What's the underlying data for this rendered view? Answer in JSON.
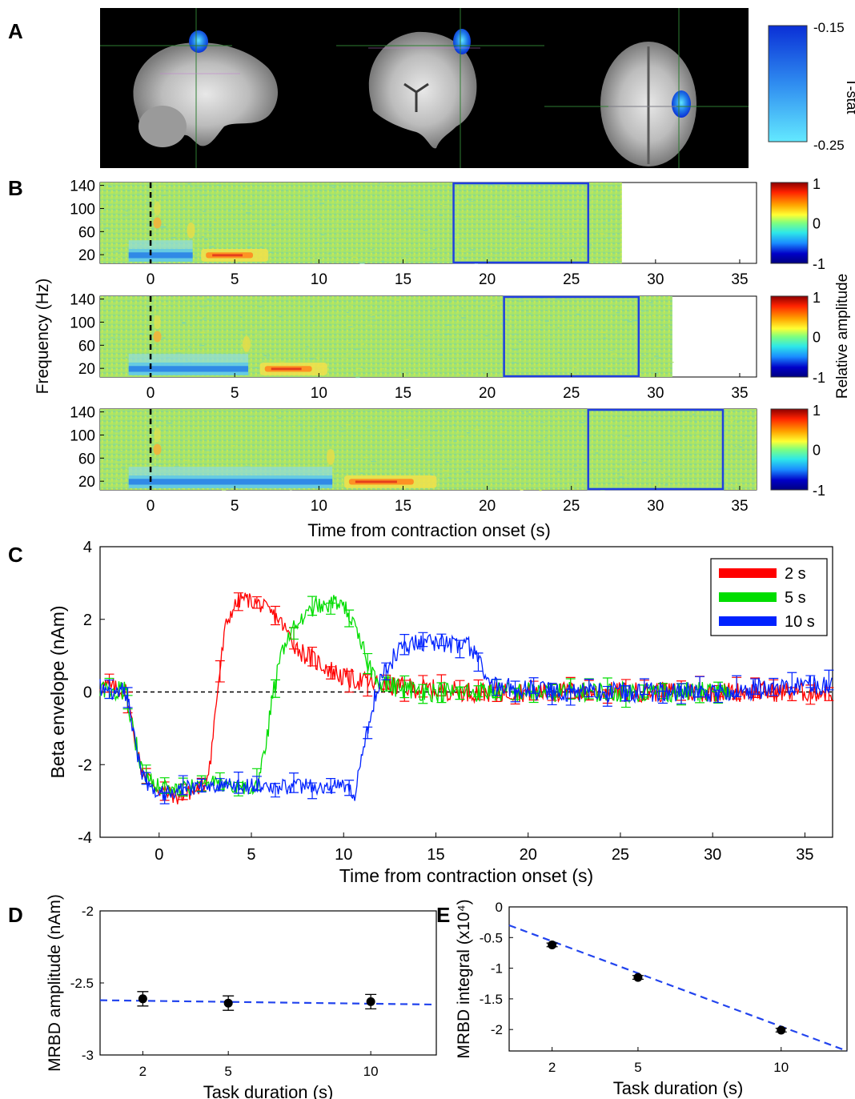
{
  "panels": {
    "a": {
      "letter": "A",
      "colorbar": {
        "top_label": "-0.15",
        "bottom_label": "-0.25",
        "title": "T-stat",
        "colors": [
          "#0a2fd6",
          "#2f8cf0",
          "#63e9ff"
        ]
      }
    },
    "b": {
      "letter": "B",
      "ylabel": "Frequency (Hz)",
      "xlabel": "Time from contraction onset (s)",
      "colorbar": {
        "title": "Relative amplitude",
        "ticks": [
          "1",
          "0",
          "-1"
        ],
        "colors": [
          "#8b0000",
          "#ff2200",
          "#ffa500",
          "#ffff33",
          "#7fff7f",
          "#2ee8e8",
          "#1a8cff",
          "#0000c8",
          "#000080"
        ]
      }
    },
    "c": {
      "letter": "C"
    },
    "d": {
      "letter": "D"
    },
    "e": {
      "letter": "E"
    }
  },
  "chart_data": [
    {
      "type": "heatmap",
      "panel": "B1",
      "condition_duration_s": 2,
      "y_ticks": [
        140,
        100,
        60,
        20
      ],
      "x_ticks": [
        0,
        5,
        10,
        15,
        20,
        25,
        30,
        35
      ],
      "xlim": [
        -3,
        36
      ],
      "ylim": [
        5,
        145
      ],
      "data_extent_s": [
        -3,
        28
      ],
      "onset_line_s": 0,
      "highlight_window_s": [
        18,
        26
      ],
      "features": {
        "desync_end_s": 2.5,
        "rebound_s": [
          3,
          7
        ],
        "rebound_band_hz": [
          10,
          30
        ]
      }
    },
    {
      "type": "heatmap",
      "panel": "B2",
      "condition_duration_s": 5,
      "y_ticks": [
        140,
        100,
        60,
        20
      ],
      "x_ticks": [
        0,
        5,
        10,
        15,
        20,
        25,
        30,
        35
      ],
      "xlim": [
        -3,
        36
      ],
      "ylim": [
        5,
        145
      ],
      "data_extent_s": [
        -3,
        31
      ],
      "onset_line_s": 0,
      "highlight_window_s": [
        21,
        29
      ],
      "features": {
        "desync_end_s": 5.8,
        "rebound_s": [
          6.5,
          10.5
        ],
        "rebound_band_hz": [
          10,
          30
        ]
      }
    },
    {
      "type": "heatmap",
      "panel": "B3",
      "condition_duration_s": 10,
      "y_ticks": [
        140,
        100,
        60,
        20
      ],
      "x_ticks": [
        0,
        5,
        10,
        15,
        20,
        25,
        30,
        35
      ],
      "xlim": [
        -3,
        36
      ],
      "ylim": [
        5,
        145
      ],
      "data_extent_s": [
        -3,
        36
      ],
      "onset_line_s": 0,
      "highlight_window_s": [
        26,
        34
      ],
      "features": {
        "desync_end_s": 10.8,
        "rebound_s": [
          11.5,
          17
        ],
        "rebound_band_hz": [
          10,
          30
        ]
      }
    },
    {
      "type": "line",
      "panel": "C",
      "xlabel": "Time from contraction onset (s)",
      "ylabel": "Beta envelope (nAm)",
      "xlim": [
        -3.2,
        36.5
      ],
      "ylim": [
        -4,
        4
      ],
      "x_ticks": [
        0,
        5,
        10,
        15,
        20,
        25,
        30,
        35
      ],
      "y_ticks": [
        4,
        2,
        0,
        -2,
        -4
      ],
      "reference_line_y": 0,
      "legend_position": "top-right",
      "series": [
        {
          "name": "2 s",
          "color": "#ff0000",
          "x": [
            -3.2,
            -1.8,
            -1.4,
            -1.0,
            -0.5,
            0,
            1,
            2,
            2.5,
            2.8,
            3.2,
            3.6,
            4,
            4.5,
            5,
            5.5,
            6,
            6.5,
            7,
            7.5,
            8,
            9,
            10,
            11,
            12,
            14,
            17,
            20,
            25,
            30,
            34,
            36.5
          ],
          "y": [
            0.2,
            0.0,
            -1.0,
            -2.1,
            -2.4,
            -2.7,
            -2.9,
            -2.7,
            -2.5,
            -1.8,
            0.2,
            1.8,
            2.3,
            2.6,
            2.5,
            2.4,
            2.2,
            2.0,
            1.6,
            1.2,
            1.0,
            0.7,
            0.4,
            0.3,
            0.2,
            0.1,
            0.0,
            0.0,
            0.0,
            0.0,
            0.0,
            0.0
          ]
        },
        {
          "name": "5 s",
          "color": "#00dd00",
          "x": [
            -3.2,
            -1.8,
            -1.4,
            -1.0,
            -0.5,
            0,
            1,
            2,
            3,
            4,
            5,
            5.4,
            5.8,
            6.2,
            6.8,
            7.5,
            8,
            8.5,
            9,
            9.5,
            10,
            10.5,
            11,
            11.5,
            12,
            13,
            15,
            18,
            22,
            26,
            29,
            31
          ],
          "y": [
            0.1,
            0.0,
            -1.0,
            -2.1,
            -2.4,
            -2.6,
            -2.7,
            -2.6,
            -2.5,
            -2.6,
            -2.7,
            -2.5,
            -1.4,
            0.0,
            1.4,
            1.9,
            2.1,
            2.4,
            2.3,
            2.5,
            2.4,
            1.9,
            1.2,
            0.6,
            0.3,
            0.1,
            0.0,
            0.0,
            0.0,
            0.0,
            0.0,
            0.0
          ]
        },
        {
          "name": "10 s",
          "color": "#0022ff",
          "x": [
            -3.2,
            -1.8,
            -1.4,
            -1.0,
            -0.5,
            0,
            1,
            2,
            4,
            6,
            8,
            10,
            10.6,
            11.0,
            11.5,
            12,
            12.5,
            13,
            14,
            15,
            16,
            17,
            17.5,
            18,
            19,
            22,
            26,
            30,
            33,
            36.5
          ],
          "y": [
            0.1,
            0.0,
            -1.0,
            -2.2,
            -2.6,
            -2.8,
            -2.7,
            -2.6,
            -2.6,
            -2.6,
            -2.6,
            -2.6,
            -2.8,
            -1.8,
            -0.5,
            0.4,
            0.8,
            1.2,
            1.4,
            1.4,
            1.3,
            1.2,
            0.6,
            0.2,
            0.1,
            0.0,
            0.0,
            0.0,
            0.1,
            0.2
          ]
        }
      ]
    },
    {
      "type": "scatter",
      "panel": "D",
      "xlabel": "Task duration (s)",
      "ylabel": "MRBD amplitude (nAm)",
      "xlim": [
        0.5,
        12.3
      ],
      "ylim": [
        -3,
        -2
      ],
      "x_ticks": [
        2,
        5,
        10
      ],
      "y_ticks": [
        -2,
        -2.5,
        -3
      ],
      "points": [
        {
          "x": 2,
          "y": -2.61,
          "err": 0.05
        },
        {
          "x": 5,
          "y": -2.64,
          "err": 0.05
        },
        {
          "x": 10,
          "y": -2.63,
          "err": 0.05
        }
      ],
      "fit": {
        "x": [
          0.5,
          12.3
        ],
        "y": [
          -2.62,
          -2.65
        ]
      }
    },
    {
      "type": "scatter",
      "panel": "E",
      "xlabel": "Task duration (s)",
      "ylabel": "MRBD integral (x10⁴)",
      "xlim": [
        0.5,
        12.3
      ],
      "ylim": [
        -2.35,
        0
      ],
      "x_ticks": [
        2,
        5,
        10
      ],
      "y_ticks": [
        0,
        -0.5,
        -1,
        -1.5,
        -2
      ],
      "points": [
        {
          "x": 2,
          "y": -0.62,
          "err": 0.03
        },
        {
          "x": 5,
          "y": -1.15,
          "err": 0.03
        },
        {
          "x": 10,
          "y": -2.01,
          "err": 0.03
        }
      ],
      "fit": {
        "x": [
          0.5,
          12.3
        ],
        "y": [
          -0.3,
          -2.35
        ]
      }
    }
  ]
}
